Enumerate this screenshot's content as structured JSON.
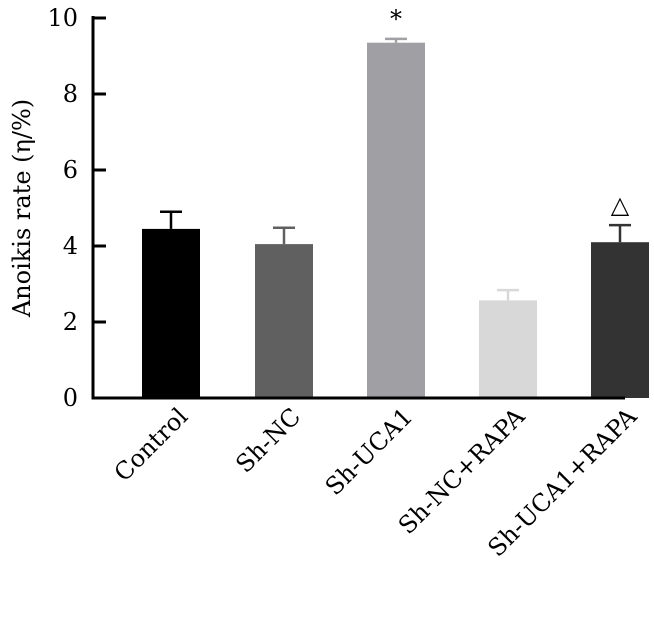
{
  "chart_data": {
    "type": "bar",
    "title": "",
    "xlabel": "",
    "ylabel": "Anoikis rate (η/%)",
    "ylim": [
      0,
      10
    ],
    "yticks": [
      "0",
      "2",
      "4",
      "6",
      "8",
      "10"
    ],
    "grid": false,
    "categories": [
      "Control",
      "Sh-NC",
      "Sh-UCA1",
      "Sh-NC+RAPA",
      "Sh-UCA1+RAPA"
    ],
    "values": [
      4.45,
      4.05,
      9.35,
      2.57,
      4.1
    ],
    "errors": [
      0.45,
      0.43,
      0.1,
      0.27,
      0.45
    ],
    "colors": [
      "#000000",
      "#606060",
      "#a0a0a4",
      "#d8d8d8",
      "#333333"
    ],
    "annotations": [
      "",
      "",
      "*",
      "",
      "△"
    ]
  }
}
